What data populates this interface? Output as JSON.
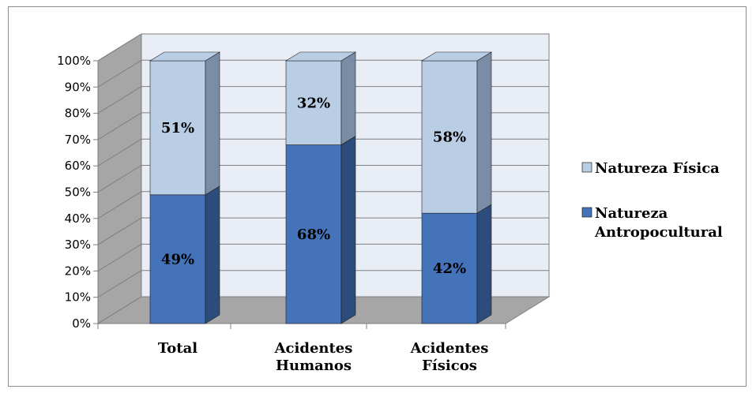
{
  "chart_data": {
    "type": "bar",
    "stacked": true,
    "percent_stacked": true,
    "three_d": true,
    "title": "",
    "xlabel": "",
    "ylabel": "",
    "ylim": [
      0,
      100
    ],
    "y_ticks": [
      "0%",
      "10%",
      "20%",
      "30%",
      "40%",
      "50%",
      "60%",
      "70%",
      "80%",
      "90%",
      "100%"
    ],
    "categories": [
      [
        "Total"
      ],
      [
        "Acidentes",
        "Humanos"
      ],
      [
        "Acidentes",
        "Físicos"
      ]
    ],
    "series": [
      {
        "name": [
          "Natureza",
          "Antropocultural"
        ],
        "values": [
          49,
          68,
          42
        ],
        "labels": [
          "49%",
          "68%",
          "42%"
        ],
        "color": "#4573b9",
        "side_color": "#2c4c7c"
      },
      {
        "name": [
          "Natureza Física"
        ],
        "values": [
          51,
          32,
          58
        ],
        "labels": [
          "51%",
          "32%",
          "58%"
        ],
        "color": "#b9cde5",
        "side_color": "#7b8da6"
      }
    ],
    "legend": "right",
    "grid": true,
    "wall_color": "#e9edf6",
    "side_wall_color": "#a6a6a6",
    "floor_color": "#a6a6a6"
  }
}
